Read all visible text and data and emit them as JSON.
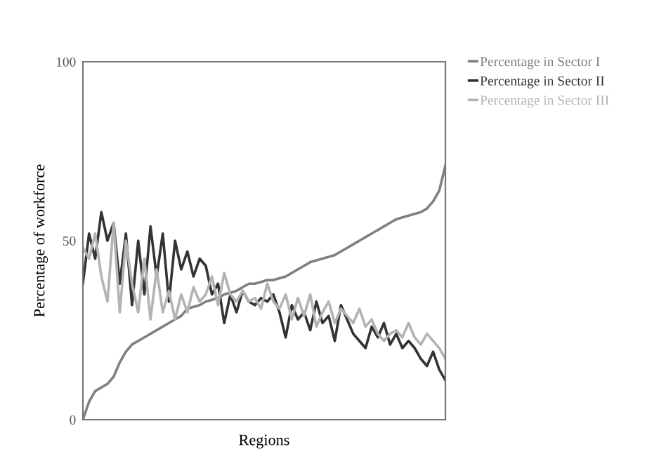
{
  "chart_data": {
    "type": "line",
    "xlabel": "Regions",
    "ylabel": "Percentage of workforce",
    "categories": [
      null,
      null,
      null,
      null,
      null,
      null,
      null,
      null,
      null,
      null,
      null,
      null,
      null,
      null,
      null,
      null,
      null,
      null,
      null,
      null,
      null,
      null,
      null,
      null,
      null,
      null,
      null,
      null,
      null,
      null,
      null,
      null,
      null,
      null,
      null,
      null,
      null,
      null,
      null,
      null,
      null,
      null,
      null,
      null,
      null,
      null,
      null,
      null,
      null,
      null,
      null,
      null,
      null,
      null,
      null,
      null,
      null,
      null,
      null,
      null
    ],
    "series": [
      {
        "name": "Percentage in Sector I",
        "color": "#808080",
        "values": [
          0,
          5,
          8,
          9,
          10,
          12,
          16,
          19,
          21,
          22,
          23,
          24,
          25,
          26,
          27,
          28,
          29,
          31,
          31.5,
          32,
          33,
          33.5,
          34,
          35,
          35.5,
          36,
          37,
          38,
          38,
          38.5,
          39,
          39,
          39.5,
          40,
          41,
          42,
          43,
          44,
          44.5,
          45,
          45.5,
          46,
          47,
          48,
          49,
          50,
          51,
          52,
          53,
          54,
          55,
          56,
          56.5,
          57,
          57.5,
          58,
          59,
          61,
          64,
          71
        ]
      },
      {
        "name": "Percentage in Sector II",
        "color": "#333333",
        "values": [
          38,
          52,
          45,
          58,
          50,
          55,
          38,
          52,
          32,
          50,
          35,
          54,
          40,
          52,
          33,
          50,
          42,
          47,
          40,
          45,
          43,
          35,
          38,
          27,
          35,
          30,
          36,
          33,
          32,
          34,
          33,
          35,
          30,
          23,
          32,
          28,
          30,
          25,
          33,
          27,
          29,
          22,
          32,
          28,
          24,
          22,
          20,
          26,
          23,
          27,
          21,
          24,
          20,
          22,
          20,
          17,
          15,
          19,
          14,
          11
        ]
      },
      {
        "name": "Percentage in Sector III",
        "color": "#b3b3b3",
        "values": [
          48,
          45,
          52,
          40,
          33,
          55,
          30,
          50,
          38,
          30,
          45,
          28,
          42,
          30,
          36,
          28,
          35,
          30,
          37,
          33,
          35,
          40,
          32,
          41,
          35,
          33,
          36,
          33,
          34,
          31,
          38,
          33,
          31,
          35,
          28,
          34,
          29,
          35,
          26,
          30,
          33,
          27,
          31,
          29,
          27,
          31,
          26,
          28,
          24,
          22,
          24,
          25,
          23,
          27,
          23,
          21,
          24,
          22,
          20,
          17
        ]
      }
    ],
    "ylim": [
      0,
      100
    ],
    "yticks": [
      0,
      50,
      100
    ],
    "grid": false,
    "legend": "top right",
    "marker": "none",
    "line_style": "solid"
  }
}
